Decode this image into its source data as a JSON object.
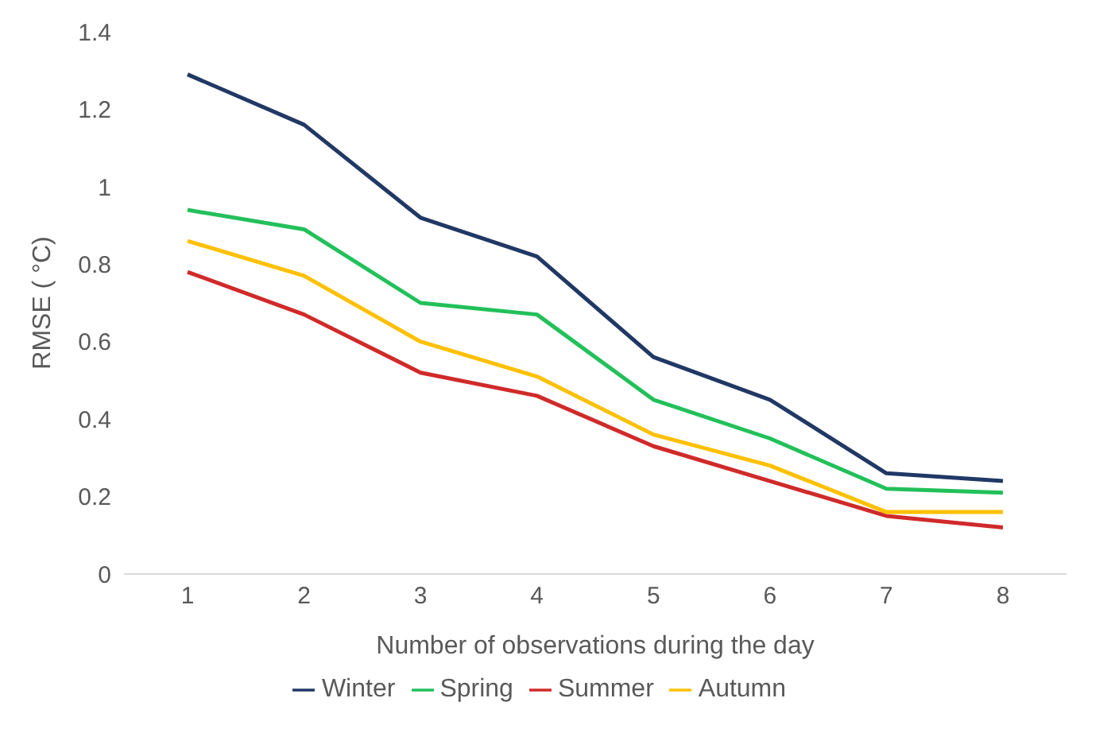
{
  "chart_data": {
    "type": "line",
    "xlabel": "Number of observations during the day",
    "ylabel": "RMSE ( °C)",
    "categories": [
      "1",
      "2",
      "3",
      "4",
      "5",
      "6",
      "7",
      "8"
    ],
    "ylim": [
      0,
      1.4
    ],
    "yticks": [
      0,
      0.2,
      0.4,
      0.6,
      0.8,
      1,
      1.2,
      1.4
    ],
    "grid": false,
    "legend": "bottom",
    "marker": "none",
    "series": [
      {
        "name": "Winter",
        "color": "#203864",
        "values": [
          1.29,
          1.16,
          0.92,
          0.82,
          0.56,
          0.45,
          0.26,
          0.24
        ]
      },
      {
        "name": "Spring",
        "color": "#22c05a",
        "values": [
          0.94,
          0.89,
          0.7,
          0.67,
          0.45,
          0.35,
          0.22,
          0.21
        ]
      },
      {
        "name": "Summer",
        "color": "#d02a2a",
        "values": [
          0.78,
          0.67,
          0.52,
          0.46,
          0.33,
          0.24,
          0.15,
          0.12
        ]
      },
      {
        "name": "Autumn",
        "color": "#ffc000",
        "values": [
          0.86,
          0.77,
          0.6,
          0.51,
          0.36,
          0.28,
          0.16,
          0.16
        ]
      }
    ]
  }
}
